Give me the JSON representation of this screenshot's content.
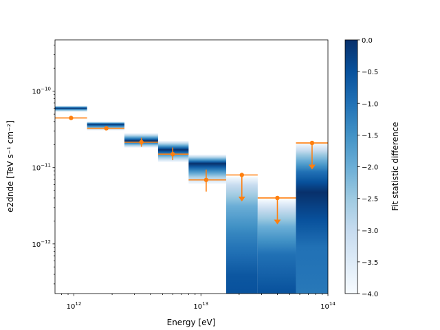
{
  "chart_data": {
    "type": "heatmap",
    "title": "",
    "xlabel": "Energy [eV]",
    "ylabel": "e2dnde [TeV s⁻¹ cm⁻²]",
    "xscale": "log",
    "yscale": "log",
    "xlim": [
      710000000000.0,
      100000000000000.0
    ],
    "ylim": [
      2.24e-13,
      4.7e-10
    ],
    "x_ticks": [
      {
        "value": 1000000000000.0,
        "base": "10",
        "exp": "12"
      },
      {
        "value": 10000000000000.0,
        "base": "10",
        "exp": "13"
      },
      {
        "value": 100000000000000.0,
        "base": "10",
        "exp": "14"
      }
    ],
    "y_ticks": [
      {
        "value": 1e-10,
        "base": "10",
        "exp": "−10"
      },
      {
        "value": 1e-11,
        "base": "10",
        "exp": "−11"
      },
      {
        "value": 1e-12,
        "base": "10",
        "exp": "−12"
      }
    ],
    "colorbar": {
      "label": "Fit statistic difference",
      "range": [
        -4.0,
        0.0
      ],
      "colormap": "Blues",
      "colors": [
        "#f7fbff",
        "#deebf7",
        "#c6dbef",
        "#9ecae1",
        "#6baed6",
        "#4292c6",
        "#2171b5",
        "#08519c",
        "#08306b"
      ],
      "ticks": [
        "0.0",
        "-0.5",
        "-1.0",
        "-1.5",
        "-2.0",
        "-2.5",
        "-3.0",
        "-3.5",
        "-4.0"
      ]
    },
    "point_color": "#ff7f0e",
    "bins": [
      {
        "e_min": 710000000000.0,
        "e_max": 1270000000000.0,
        "profile": [
          [
            6.47e-11,
            -4
          ],
          [
            6e-11,
            0
          ],
          [
            5.37e-11,
            -4
          ]
        ]
      },
      {
        "e_min": 1270000000000.0,
        "e_max": 2500000000000.0,
        "profile": [
          [
            4e-11,
            -4
          ],
          [
            3.7e-11,
            0
          ],
          [
            3.06e-11,
            -4
          ]
        ]
      },
      {
        "e_min": 2500000000000.0,
        "e_max": 4600000000000.0,
        "profile": [
          [
            2.82e-11,
            -4
          ],
          [
            2.24e-11,
            0
          ],
          [
            1.82e-11,
            -4
          ]
        ]
      },
      {
        "e_min": 4600000000000.0,
        "e_max": 8000000000000.0,
        "profile": [
          [
            2.24e-11,
            -4
          ],
          [
            1.71e-11,
            0
          ],
          [
            1.18e-11,
            -4
          ]
        ]
      },
      {
        "e_min": 8000000000000.0,
        "e_max": 15800000000000.0,
        "profile": [
          [
            1.48e-11,
            -4
          ],
          [
            1.13e-11,
            0
          ],
          [
            6.1e-12,
            -4
          ]
        ]
      },
      {
        "e_min": 15800000000000.0,
        "e_max": 28000000000000.0,
        "profile": [
          [
            7.64e-12,
            -4
          ],
          [
            5.83e-12,
            -3
          ],
          [
            3.13e-12,
            -2
          ],
          [
            1.36e-12,
            -1.3
          ],
          [
            3.94e-13,
            -0.6
          ],
          [
            2.24e-13,
            -0.5
          ]
        ]
      },
      {
        "e_min": 28000000000000.0,
        "e_max": 56000000000000.0,
        "profile": [
          [
            3.86e-12,
            -4
          ],
          [
            2.82e-12,
            -3
          ],
          [
            1.68e-12,
            -2
          ],
          [
            7.33e-13,
            -1
          ],
          [
            2.24e-13,
            -0.5
          ]
        ]
      },
      {
        "e_min": 56000000000000.0,
        "e_max": 100000000000000.0,
        "profile": [
          [
            2.11e-11,
            -4
          ],
          [
            1.48e-11,
            -2.5
          ],
          [
            8.8e-12,
            -1
          ],
          [
            4.74e-12,
            0
          ],
          [
            2.07e-12,
            -0.5
          ],
          [
            9e-13,
            -1
          ],
          [
            2.24e-13,
            -1.1
          ]
        ]
      }
    ],
    "points": [
      {
        "e": 950000000000.0,
        "e_min": 710000000000.0,
        "e_max": 1270000000000.0,
        "flux": 4.46e-11,
        "err_lo": 4.3e-11,
        "err_hi": 4.6e-11,
        "ul": false
      },
      {
        "e": 1800000000000.0,
        "e_min": 1270000000000.0,
        "e_max": 2500000000000.0,
        "flux": 3.27e-11,
        "err_lo": 3.15e-11,
        "err_hi": 3.4e-11,
        "ul": false
      },
      {
        "e": 3400000000000.0,
        "e_min": 2500000000000.0,
        "e_max": 4600000000000.0,
        "flux": 2.15e-11,
        "err_lo": 1.87e-11,
        "err_hi": 2.45e-11,
        "ul": false
      },
      {
        "e": 6000000000000.0,
        "e_min": 4600000000000.0,
        "e_max": 8000000000000.0,
        "flux": 1.5e-11,
        "err_lo": 1.25e-11,
        "err_hi": 1.83e-11,
        "ul": false
      },
      {
        "e": 11000000000000.0,
        "e_min": 8000000000000.0,
        "e_max": 15800000000000.0,
        "flux": 6.9e-12,
        "err_lo": 4.85e-12,
        "err_hi": 9.4e-12,
        "ul": false
      },
      {
        "e": 21000000000000.0,
        "e_min": 15800000000000.0,
        "e_max": 28000000000000.0,
        "flux": 8e-12,
        "ul": true
      },
      {
        "e": 40000000000000.0,
        "e_min": 28000000000000.0,
        "e_max": 56000000000000.0,
        "flux": 4e-12,
        "ul": true
      },
      {
        "e": 75000000000000.0,
        "e_min": 56000000000000.0,
        "e_max": 100000000000000.0,
        "flux": 2.1e-11,
        "ul": true
      }
    ]
  }
}
